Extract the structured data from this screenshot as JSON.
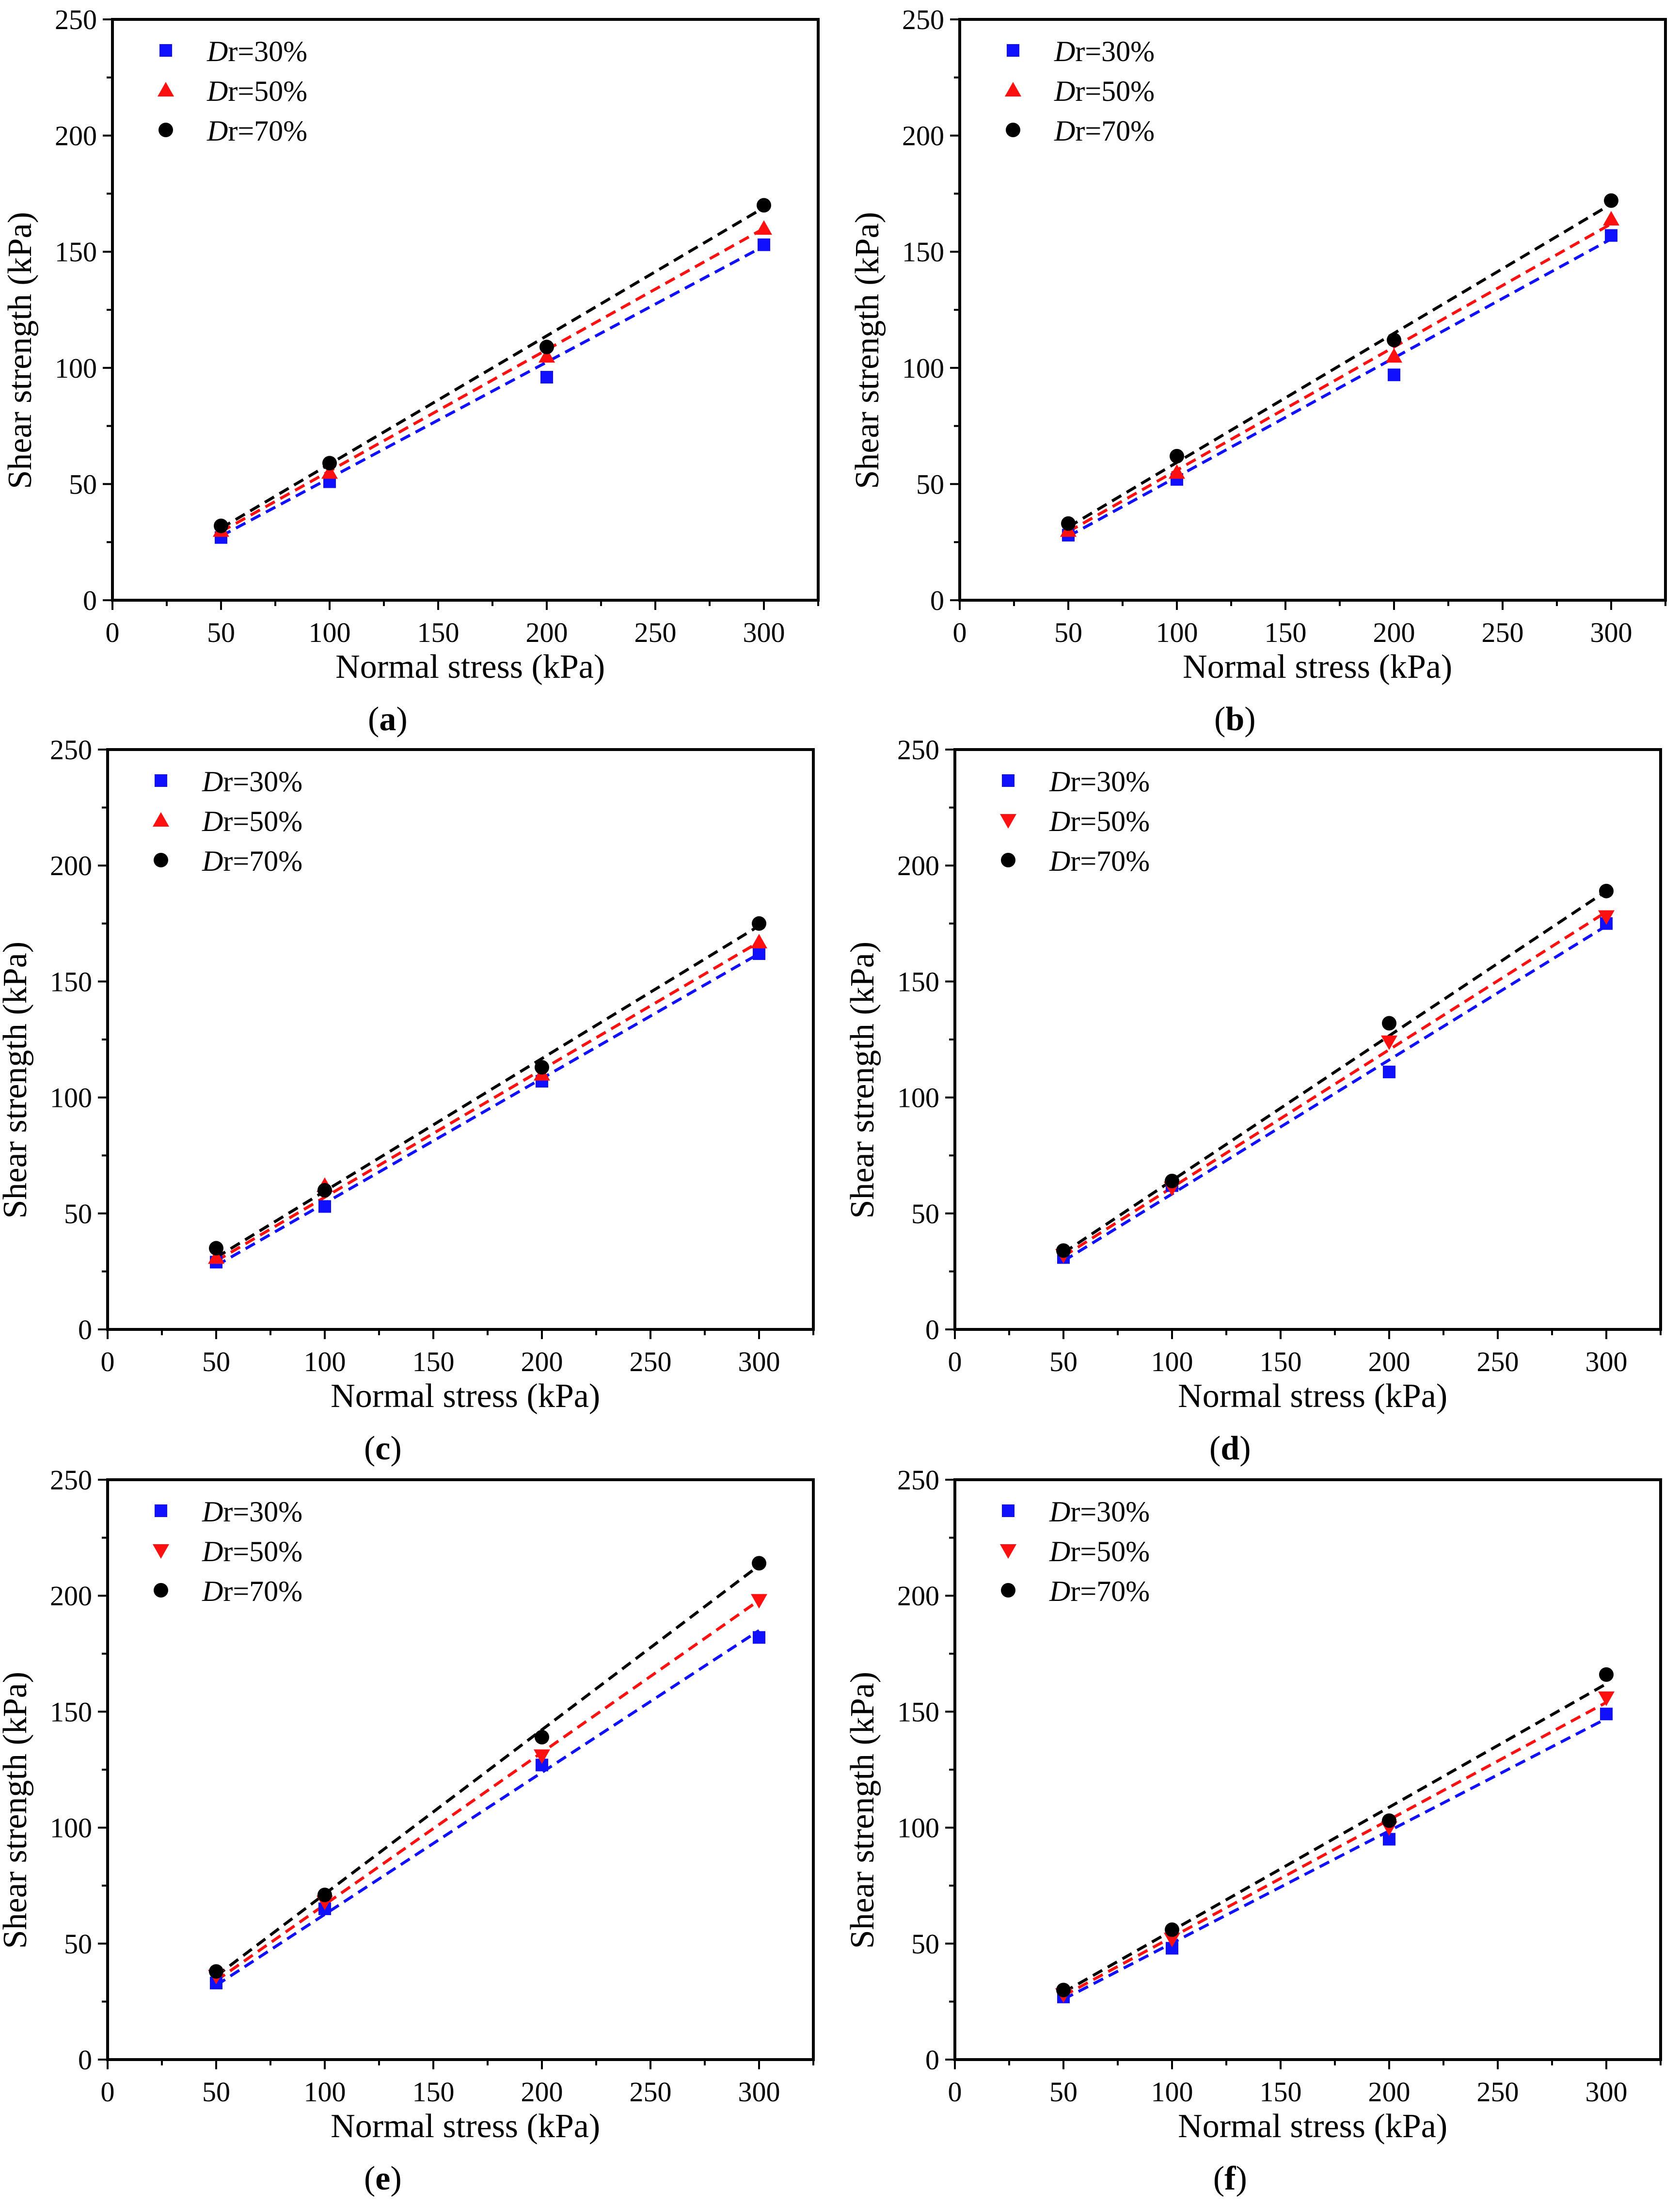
{
  "figure": {
    "legend_prefix": "D",
    "colors": {
      "Dr=30%": "#1010ff",
      "Dr=50%": "#ff1010",
      "Dr=70%": "#000000"
    },
    "marker_shapes": {
      "square": "square-marker-icon",
      "triangle-up": "triangle-up-marker-icon",
      "triangle-down": "triangle-down-marker-icon",
      "circle": "circle-marker-icon"
    }
  },
  "chart_data": [
    {
      "type": "scatter",
      "panel": "(a)",
      "panel_letter": "a",
      "xlabel": "Normal stress (kPa)",
      "ylabel": "Shear strength (kPa)",
      "xlim": [
        0,
        325
      ],
      "ylim": [
        0,
        250
      ],
      "xticks": [
        0,
        50,
        100,
        150,
        200,
        250,
        300
      ],
      "yticks": [
        0,
        50,
        100,
        150,
        200,
        250
      ],
      "x": [
        50,
        100,
        200,
        300
      ],
      "series": [
        {
          "name": "Dr=30%",
          "legend_suffix": "r=30%",
          "color": "#1010ff",
          "marker": "square",
          "values": [
            27,
            51,
            96,
            153
          ],
          "fit": [
            27.6,
            152.4
          ]
        },
        {
          "name": "Dr=50%",
          "legend_suffix": "r=50%",
          "color": "#ff1010",
          "marker": "triangle-up",
          "values": [
            30,
            55,
            105,
            160
          ],
          "fit": [
            29.5,
            160.0
          ]
        },
        {
          "name": "Dr=70%",
          "legend_suffix": "r=70%",
          "color": "#000000",
          "marker": "circle",
          "values": [
            32,
            59,
            109,
            170
          ],
          "fit": [
            31.0,
            169.0
          ]
        }
      ]
    },
    {
      "type": "scatter",
      "panel": "(b)",
      "panel_letter": "b",
      "xlabel": "Normal stress (kPa)",
      "ylabel": "Shear strength (kPa)",
      "xlim": [
        0,
        325
      ],
      "ylim": [
        0,
        250
      ],
      "xticks": [
        0,
        50,
        100,
        150,
        200,
        250,
        300
      ],
      "yticks": [
        0,
        50,
        100,
        150,
        200,
        250
      ],
      "x": [
        50,
        100,
        200,
        300
      ],
      "series": [
        {
          "name": "Dr=30%",
          "legend_suffix": "r=30%",
          "color": "#1010ff",
          "marker": "square",
          "values": [
            28,
            52,
            97,
            157
          ],
          "fit": [
            27.5,
            155.5
          ]
        },
        {
          "name": "Dr=50%",
          "legend_suffix": "r=50%",
          "color": "#ff1010",
          "marker": "triangle-up",
          "values": [
            30,
            55,
            105,
            164
          ],
          "fit": [
            29.5,
            162.0
          ]
        },
        {
          "name": "Dr=70%",
          "legend_suffix": "r=70%",
          "color": "#000000",
          "marker": "circle",
          "values": [
            33,
            62,
            112,
            172
          ],
          "fit": [
            31.5,
            170.5
          ]
        }
      ]
    },
    {
      "type": "scatter",
      "panel": "(c)",
      "panel_letter": "c",
      "xlabel": "Normal stress (kPa)",
      "ylabel": "Shear strength (kPa)",
      "xlim": [
        0,
        325
      ],
      "ylim": [
        0,
        250
      ],
      "xticks": [
        0,
        50,
        100,
        150,
        200,
        250,
        300
      ],
      "yticks": [
        0,
        50,
        100,
        150,
        200,
        250
      ],
      "x": [
        50,
        100,
        200,
        300
      ],
      "series": [
        {
          "name": "Dr=30%",
          "legend_suffix": "r=30%",
          "color": "#1010ff",
          "marker": "square",
          "values": [
            29,
            53,
            107,
            162
          ],
          "fit": [
            27.5,
            162.0
          ]
        },
        {
          "name": "Dr=50%",
          "legend_suffix": "r=50%",
          "color": "#ff1010",
          "marker": "triangle-up",
          "values": [
            31,
            62,
            110,
            167
          ],
          "fit": [
            29.5,
            167.0
          ]
        },
        {
          "name": "Dr=70%",
          "legend_suffix": "r=70%",
          "color": "#000000",
          "marker": "circle",
          "values": [
            35,
            60,
            113,
            175
          ],
          "fit": [
            31.0,
            174.0
          ]
        }
      ]
    },
    {
      "type": "scatter",
      "panel": "(d)",
      "panel_letter": "d",
      "xlabel": "Normal stress (kPa)",
      "ylabel": "Shear strength (kPa)",
      "xlim": [
        0,
        325
      ],
      "ylim": [
        0,
        250
      ],
      "xticks": [
        0,
        50,
        100,
        150,
        200,
        250,
        300
      ],
      "yticks": [
        0,
        50,
        100,
        150,
        200,
        250
      ],
      "x": [
        50,
        100,
        200,
        300
      ],
      "series": [
        {
          "name": "Dr=30%",
          "legend_suffix": "r=30%",
          "color": "#1010ff",
          "marker": "square",
          "values": [
            31,
            62,
            111,
            175
          ],
          "fit": [
            29.5,
            174.0
          ]
        },
        {
          "name": "Dr=50%",
          "legend_suffix": "r=50%",
          "color": "#ff1010",
          "marker": "triangle-down",
          "values": [
            32,
            61,
            124,
            178
          ],
          "fit": [
            31.5,
            180.0
          ]
        },
        {
          "name": "Dr=70%",
          "legend_suffix": "r=70%",
          "color": "#000000",
          "marker": "circle",
          "values": [
            34,
            64,
            132,
            189
          ],
          "fit": [
            33.0,
            189.0
          ]
        }
      ]
    },
    {
      "type": "scatter",
      "panel": "(e)",
      "panel_letter": "e",
      "xlabel": "Normal stress (kPa)",
      "ylabel": "Shear strength (kPa)",
      "xlim": [
        0,
        325
      ],
      "ylim": [
        0,
        250
      ],
      "xticks": [
        0,
        50,
        100,
        150,
        200,
        250,
        300
      ],
      "yticks": [
        0,
        50,
        100,
        150,
        200,
        250
      ],
      "x": [
        50,
        100,
        200,
        300
      ],
      "series": [
        {
          "name": "Dr=30%",
          "legend_suffix": "r=30%",
          "color": "#1010ff",
          "marker": "square",
          "values": [
            33,
            65,
            127,
            182
          ],
          "fit": [
            32.0,
            185.0
          ]
        },
        {
          "name": "Dr=50%",
          "legend_suffix": "r=50%",
          "color": "#ff1010",
          "marker": "triangle-down",
          "values": [
            36,
            68,
            131,
            198
          ],
          "fit": [
            34.0,
            198.0
          ]
        },
        {
          "name": "Dr=70%",
          "legend_suffix": "r=70%",
          "color": "#000000",
          "marker": "circle",
          "values": [
            38,
            71,
            139,
            214
          ],
          "fit": [
            36.0,
            213.0
          ]
        }
      ]
    },
    {
      "type": "scatter",
      "panel": "(f)",
      "panel_letter": "f",
      "xlabel": "Normal stress (kPa)",
      "ylabel": "Shear strength (kPa)",
      "xlim": [
        0,
        325
      ],
      "ylim": [
        0,
        250
      ],
      "xticks": [
        0,
        50,
        100,
        150,
        200,
        250,
        300
      ],
      "yticks": [
        0,
        50,
        100,
        150,
        200,
        250
      ],
      "x": [
        50,
        100,
        200,
        300
      ],
      "series": [
        {
          "name": "Dr=30%",
          "legend_suffix": "r=30%",
          "color": "#1010ff",
          "marker": "square",
          "values": [
            27,
            48,
            95,
            149
          ],
          "fit": [
            26.0,
            147.0
          ]
        },
        {
          "name": "Dr=50%",
          "legend_suffix": "r=50%",
          "color": "#ff1010",
          "marker": "triangle-down",
          "values": [
            28,
            52,
            100,
            156
          ],
          "fit": [
            27.5,
            154.0
          ]
        },
        {
          "name": "Dr=70%",
          "legend_suffix": "r=70%",
          "color": "#000000",
          "marker": "circle",
          "values": [
            30,
            56,
            103,
            166
          ],
          "fit": [
            29.0,
            162.0
          ]
        }
      ]
    }
  ]
}
